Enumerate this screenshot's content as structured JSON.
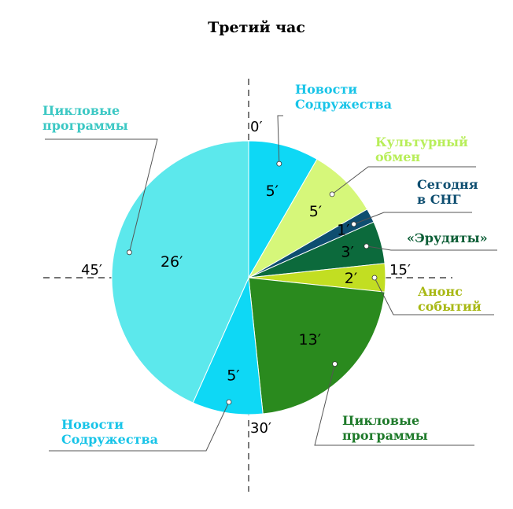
{
  "chart_data": {
    "type": "pie",
    "title": "Третий час",
    "unit": "′",
    "slices": [
      {
        "label": "Новости\nСодружества",
        "value": 5,
        "color": "#0ed8f5",
        "label_color": "#18c4e8"
      },
      {
        "label": "Культурный\nобмен",
        "value": 5,
        "color": "#d6f77a",
        "label_color": "#b8ee5a"
      },
      {
        "label": "Сегодня\nв СНГ",
        "value": 1,
        "color": "#0e4e70",
        "label_color": "#0e4e70"
      },
      {
        "label": "«Эрудиты»",
        "value": 3,
        "color": "#0c6a3c",
        "label_color": "#0c5e36"
      },
      {
        "label": "Анонс\nсобытий",
        "value": 2,
        "color": "#c2de22",
        "label_color": "#a8b814"
      },
      {
        "label": "Цикловые\nпрограммы",
        "value": 13,
        "color": "#2a8a1e",
        "label_color": "#1e7a2a"
      },
      {
        "label": "Новости\nСодружества",
        "value": 5,
        "color": "#0ed8f5",
        "label_color": "#18c4e8"
      },
      {
        "label": "Цикловые\nпрограммы",
        "value": 26,
        "color": "#5ce8ec",
        "label_color": "#3cc8c4"
      }
    ],
    "ticks": [
      "0′",
      "15′",
      "30′",
      "45′"
    ],
    "legend": "none"
  }
}
